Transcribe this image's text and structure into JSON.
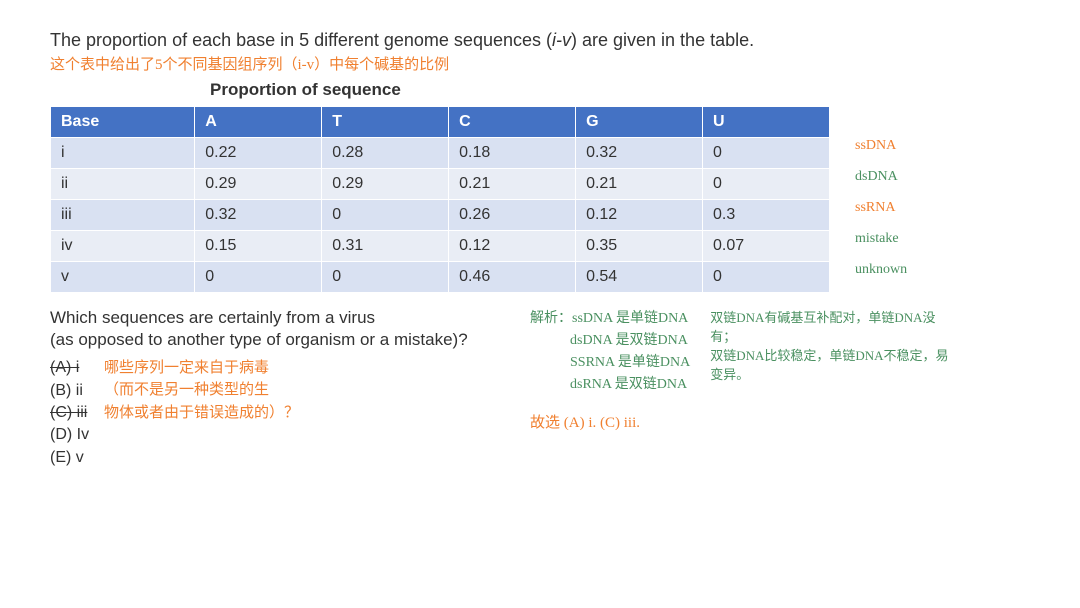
{
  "question": {
    "text_before": "The proportion of each base in 5 different genome sequences (",
    "italic": "i-v",
    "text_after": ") are given in the table."
  },
  "hand_translation": "这个表中给出了5个不同基因组序列（i-v）中每个碱基的比例",
  "table_title": "Proportion of sequence",
  "table": {
    "headers": [
      "Base",
      "A",
      "T",
      "C",
      "G",
      "U"
    ],
    "rows": [
      {
        "cells": [
          "i",
          "0.22",
          "0.28",
          "0.18",
          "0.32",
          "0"
        ],
        "note": "ssDNA",
        "note_color": "orange"
      },
      {
        "cells": [
          "ii",
          "0.29",
          "0.29",
          "0.21",
          "0.21",
          "0"
        ],
        "note": "dsDNA",
        "note_color": "green"
      },
      {
        "cells": [
          "iii",
          "0.32",
          "0",
          "0.26",
          "0.12",
          "0.3"
        ],
        "note": "ssRNA",
        "note_color": "orange"
      },
      {
        "cells": [
          "iv",
          "0.15",
          "0.31",
          "0.12",
          "0.35",
          "0.07"
        ],
        "note": "mistake",
        "note_color": "green"
      },
      {
        "cells": [
          "v",
          "0",
          "0",
          "0.46",
          "0.54",
          "0"
        ],
        "note": "unknown",
        "note_color": "green"
      }
    ]
  },
  "q2_line1": "Which sequences are certainly from a virus",
  "q2_line2": " (as opposed to another type of organism or a mistake)?",
  "options": [
    {
      "label": "(A) i",
      "strike": true,
      "note": "哪些序列一定来自于病毒"
    },
    {
      "label": "(B) ii",
      "strike": false,
      "note": "（而不是另一种类型的生"
    },
    {
      "label": "(C) iii",
      "strike": true,
      "note": "物体或者由于错误造成的）？"
    },
    {
      "label": "(D) Iv",
      "strike": false,
      "note": ""
    },
    {
      "label": "(E) v",
      "strike": false,
      "note": ""
    }
  ],
  "analysis": {
    "title": "解析：",
    "lines": [
      "ssDNA 是单链DNA",
      "dsDNA 是双链DNA",
      "SSRNA 是单链DNA",
      "dsRNA 是双链DNA"
    ],
    "answer": "故选 (A) i. (C) iii."
  },
  "right_notes": [
    "双链DNA有碱基互补配对，单链DNA没有；",
    "双链DNA比较稳定，单链DNA不稳定，易变异。"
  ]
}
